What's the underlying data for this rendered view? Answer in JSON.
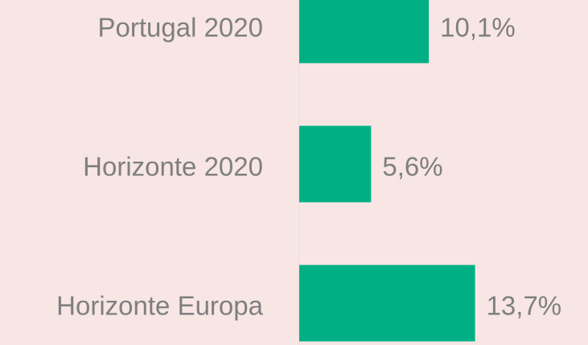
{
  "chart_data": {
    "type": "barh",
    "categories": [
      "Portugal 2020",
      "Horizonte 2020",
      "Horizonte Europa"
    ],
    "values": [
      10.1,
      5.6,
      13.7
    ],
    "value_labels": [
      "10,1%",
      "5,6%",
      "13,7%"
    ],
    "color": "#00b084",
    "xlim": [
      0,
      22.5
    ]
  }
}
